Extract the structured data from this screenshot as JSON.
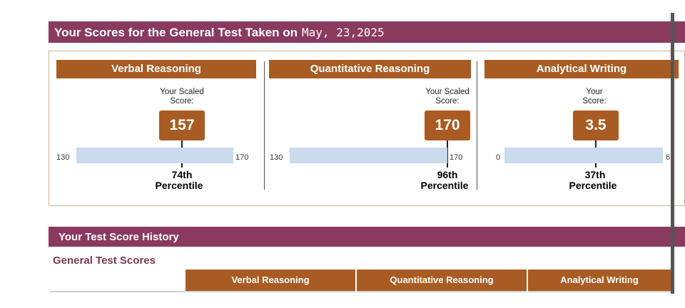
{
  "header": {
    "title": "Your Scores for the General Test Taken on",
    "date": "May, 23,2025"
  },
  "sections": [
    {
      "title": "Verbal Reasoning",
      "score_label_line1": "Your Scaled",
      "score_label_line2": "Score:",
      "score": "157",
      "min": "130",
      "max": "170",
      "percentile_rank": "74th",
      "percentile_word": "Percentile"
    },
    {
      "title": "Quantitative Reasoning",
      "score_label_line1": "Your Scaled",
      "score_label_line2": "Score:",
      "score": "170",
      "min": "130",
      "max": "170",
      "percentile_rank": "96th",
      "percentile_word": "Percentile"
    },
    {
      "title": "Analytical Writing",
      "score_label_line1": "Your",
      "score_label_line2": "Score:",
      "score": "3.5",
      "min": "0",
      "max": "6",
      "percentile_rank": "37th",
      "percentile_word": "Percentile"
    }
  ],
  "history": {
    "title": "Your Test Score History",
    "subtitle": "General Test Scores",
    "columns": [
      "Verbal Reasoning",
      "Quantitative Reasoning",
      "Analytical Writing"
    ]
  },
  "colors": {
    "maroon": "#8a3a5e",
    "orange": "#a85c23",
    "bar": "#c9dbec"
  }
}
